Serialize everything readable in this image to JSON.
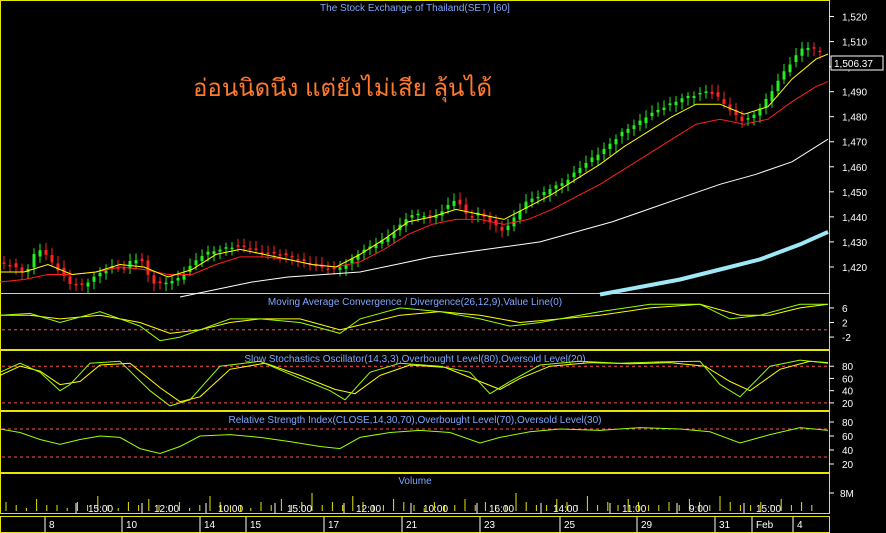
{
  "chart_data": [
    {
      "type": "candlestick",
      "title": "The Stock Exchange of Thailand(SET) [60]",
      "annotation": "อ่อนนิดนึง แต่ยังไม่เสีย ลุ้นได้",
      "last_price_label": "1,506.37",
      "ylim": [
        1410,
        1525
      ],
      "yticks": [
        "1,420",
        "1,430",
        "1,440",
        "1,450",
        "1,460",
        "1,470",
        "1,480",
        "1,490",
        "1,500",
        "1,510",
        "1,520"
      ],
      "ytick_values": [
        1420,
        1430,
        1440,
        1450,
        1460,
        1470,
        1480,
        1490,
        1500,
        1510,
        1520
      ],
      "series_colors": {
        "up": "#22ee22",
        "down": "#ff2222",
        "ma_short": "#ffff00",
        "ma_mid": "#ff2020",
        "ma_long": "#ffffff",
        "ma_longest": "#9fe8f5"
      },
      "close_path": [
        [
          0,
          1422
        ],
        [
          12,
          1421
        ],
        [
          24,
          1417
        ],
        [
          30,
          1420
        ],
        [
          36,
          1427
        ],
        [
          42,
          1427
        ],
        [
          48,
          1424
        ],
        [
          60,
          1418
        ],
        [
          70,
          1413
        ],
        [
          84,
          1413
        ],
        [
          96,
          1417
        ],
        [
          108,
          1419
        ],
        [
          114,
          1420
        ],
        [
          126,
          1419
        ],
        [
          132,
          1424
        ],
        [
          144,
          1422
        ],
        [
          150,
          1414
        ],
        [
          156,
          1413
        ],
        [
          168,
          1414
        ],
        [
          180,
          1416
        ],
        [
          192,
          1421
        ],
        [
          204,
          1425
        ],
        [
          216,
          1427
        ],
        [
          228,
          1428
        ],
        [
          240,
          1428
        ],
        [
          252,
          1427
        ],
        [
          264,
          1426
        ],
        [
          276,
          1425
        ],
        [
          288,
          1424
        ],
        [
          300,
          1423
        ],
        [
          312,
          1421
        ],
        [
          324,
          1419
        ],
        [
          336,
          1419
        ],
        [
          348,
          1422
        ],
        [
          360,
          1426
        ],
        [
          372,
          1428
        ],
        [
          384,
          1431
        ],
        [
          396,
          1435
        ],
        [
          408,
          1440
        ],
        [
          420,
          1441
        ],
        [
          432,
          1440
        ],
        [
          444,
          1443
        ],
        [
          456,
          1447
        ],
        [
          468,
          1440
        ],
        [
          480,
          1442
        ],
        [
          492,
          1437
        ],
        [
          504,
          1434
        ],
        [
          516,
          1441
        ],
        [
          528,
          1447
        ],
        [
          540,
          1448
        ],
        [
          552,
          1452
        ],
        [
          564,
          1454
        ],
        [
          576,
          1458
        ],
        [
          588,
          1462
        ],
        [
          600,
          1466
        ],
        [
          612,
          1470
        ],
        [
          624,
          1474
        ],
        [
          636,
          1477
        ],
        [
          648,
          1481
        ],
        [
          660,
          1483
        ],
        [
          672,
          1485
        ],
        [
          684,
          1488
        ],
        [
          696,
          1489
        ],
        [
          708,
          1490
        ],
        [
          720,
          1487
        ],
        [
          732,
          1482
        ],
        [
          744,
          1478
        ],
        [
          756,
          1481
        ],
        [
          768,
          1488
        ],
        [
          780,
          1496
        ],
        [
          792,
          1502
        ],
        [
          804,
          1508
        ],
        [
          816,
          1507
        ],
        [
          828,
          1506
        ]
      ],
      "ma_short_path": [
        [
          0,
          1418
        ],
        [
          24,
          1418
        ],
        [
          48,
          1421
        ],
        [
          72,
          1417
        ],
        [
          96,
          1418
        ],
        [
          120,
          1421
        ],
        [
          144,
          1420
        ],
        [
          168,
          1416
        ],
        [
          192,
          1419
        ],
        [
          216,
          1425
        ],
        [
          240,
          1427
        ],
        [
          264,
          1425
        ],
        [
          288,
          1423
        ],
        [
          312,
          1421
        ],
        [
          336,
          1420
        ],
        [
          360,
          1425
        ],
        [
          384,
          1431
        ],
        [
          408,
          1438
        ],
        [
          432,
          1440
        ],
        [
          456,
          1443
        ],
        [
          480,
          1441
        ],
        [
          504,
          1439
        ],
        [
          528,
          1444
        ],
        [
          552,
          1449
        ],
        [
          576,
          1455
        ],
        [
          600,
          1461
        ],
        [
          624,
          1468
        ],
        [
          648,
          1474
        ],
        [
          672,
          1480
        ],
        [
          696,
          1485
        ],
        [
          720,
          1485
        ],
        [
          744,
          1481
        ],
        [
          768,
          1484
        ],
        [
          792,
          1495
        ],
        [
          816,
          1503
        ],
        [
          828,
          1505
        ]
      ],
      "ma_mid_path": [
        [
          0,
          1414
        ],
        [
          24,
          1415
        ],
        [
          48,
          1417
        ],
        [
          72,
          1417
        ],
        [
          96,
          1418
        ],
        [
          120,
          1420
        ],
        [
          144,
          1419
        ],
        [
          168,
          1417
        ],
        [
          192,
          1417
        ],
        [
          216,
          1421
        ],
        [
          240,
          1424
        ],
        [
          264,
          1424
        ],
        [
          288,
          1423
        ],
        [
          312,
          1421
        ],
        [
          336,
          1420
        ],
        [
          360,
          1422
        ],
        [
          384,
          1427
        ],
        [
          408,
          1433
        ],
        [
          432,
          1437
        ],
        [
          456,
          1439
        ],
        [
          480,
          1439
        ],
        [
          504,
          1437
        ],
        [
          528,
          1439
        ],
        [
          552,
          1443
        ],
        [
          576,
          1448
        ],
        [
          600,
          1453
        ],
        [
          624,
          1459
        ],
        [
          648,
          1465
        ],
        [
          672,
          1471
        ],
        [
          696,
          1477
        ],
        [
          720,
          1479
        ],
        [
          744,
          1477
        ],
        [
          768,
          1479
        ],
        [
          792,
          1486
        ],
        [
          816,
          1492
        ],
        [
          828,
          1494
        ]
      ],
      "ma_long_path": [
        [
          180,
          1408
        ],
        [
          216,
          1411
        ],
        [
          252,
          1414
        ],
        [
          288,
          1416
        ],
        [
          324,
          1417
        ],
        [
          360,
          1418
        ],
        [
          396,
          1421
        ],
        [
          432,
          1424
        ],
        [
          468,
          1426
        ],
        [
          504,
          1428
        ],
        [
          540,
          1430
        ],
        [
          576,
          1434
        ],
        [
          612,
          1438
        ],
        [
          648,
          1443
        ],
        [
          684,
          1448
        ],
        [
          720,
          1453
        ],
        [
          756,
          1457
        ],
        [
          792,
          1462
        ],
        [
          828,
          1471
        ]
      ],
      "ma_longest_path": [
        [
          600,
          1409
        ],
        [
          640,
          1412
        ],
        [
          680,
          1415
        ],
        [
          720,
          1419
        ],
        [
          760,
          1423
        ],
        [
          800,
          1429
        ],
        [
          828,
          1434
        ]
      ]
    },
    {
      "type": "line",
      "title": "Moving Average Convergence / Divergence(26,12,9),Value Line(0)",
      "ylim": [
        -5,
        9
      ],
      "yticks": [
        "6",
        "2",
        "-2"
      ],
      "ytick_values": [
        6,
        2,
        -2
      ],
      "ref_levels": [
        0
      ],
      "macd": [
        [
          0,
          4
        ],
        [
          30,
          4.5
        ],
        [
          60,
          2
        ],
        [
          100,
          5
        ],
        [
          140,
          1
        ],
        [
          160,
          -3
        ],
        [
          180,
          -2
        ],
        [
          200,
          0
        ],
        [
          230,
          3
        ],
        [
          260,
          3
        ],
        [
          300,
          2
        ],
        [
          340,
          -1
        ],
        [
          360,
          3
        ],
        [
          400,
          6
        ],
        [
          440,
          5
        ],
        [
          480,
          3
        ],
        [
          510,
          1
        ],
        [
          540,
          2
        ],
        [
          600,
          5
        ],
        [
          650,
          7
        ],
        [
          700,
          7
        ],
        [
          730,
          3
        ],
        [
          760,
          4
        ],
        [
          800,
          7
        ],
        [
          828,
          7
        ]
      ],
      "signal": [
        [
          0,
          4
        ],
        [
          30,
          4
        ],
        [
          60,
          3
        ],
        [
          100,
          4
        ],
        [
          140,
          2
        ],
        [
          170,
          -1
        ],
        [
          200,
          0
        ],
        [
          230,
          2
        ],
        [
          260,
          3
        ],
        [
          300,
          3
        ],
        [
          340,
          0
        ],
        [
          370,
          2
        ],
        [
          400,
          4
        ],
        [
          440,
          5
        ],
        [
          480,
          4
        ],
        [
          520,
          2
        ],
        [
          560,
          3
        ],
        [
          600,
          4
        ],
        [
          650,
          6
        ],
        [
          700,
          7
        ],
        [
          740,
          4
        ],
        [
          770,
          4
        ],
        [
          800,
          6
        ],
        [
          828,
          7
        ]
      ]
    },
    {
      "type": "line",
      "title": "Slow Stochastics Oscillator(14,3,3),Overbought Level(80),Oversold Level(20)",
      "ylim": [
        10,
        100
      ],
      "yticks": [
        "80",
        "60",
        "40",
        "20"
      ],
      "ytick_values": [
        80,
        60,
        40,
        20
      ],
      "ref_levels": [
        80,
        20
      ],
      "k": [
        [
          0,
          70
        ],
        [
          20,
          85
        ],
        [
          40,
          70
        ],
        [
          60,
          40
        ],
        [
          70,
          50
        ],
        [
          90,
          85
        ],
        [
          120,
          88
        ],
        [
          150,
          40
        ],
        [
          170,
          15
        ],
        [
          190,
          25
        ],
        [
          220,
          80
        ],
        [
          260,
          88
        ],
        [
          300,
          60
        ],
        [
          330,
          40
        ],
        [
          345,
          25
        ],
        [
          370,
          70
        ],
        [
          400,
          85
        ],
        [
          440,
          80
        ],
        [
          470,
          70
        ],
        [
          490,
          35
        ],
        [
          510,
          55
        ],
        [
          540,
          82
        ],
        [
          580,
          88
        ],
        [
          620,
          85
        ],
        [
          660,
          87
        ],
        [
          700,
          88
        ],
        [
          720,
          50
        ],
        [
          740,
          30
        ],
        [
          770,
          80
        ],
        [
          800,
          90
        ],
        [
          828,
          85
        ]
      ],
      "d": [
        [
          0,
          65
        ],
        [
          20,
          80
        ],
        [
          40,
          72
        ],
        [
          60,
          50
        ],
        [
          80,
          55
        ],
        [
          100,
          82
        ],
        [
          130,
          85
        ],
        [
          160,
          45
        ],
        [
          180,
          22
        ],
        [
          200,
          30
        ],
        [
          230,
          75
        ],
        [
          265,
          85
        ],
        [
          300,
          65
        ],
        [
          335,
          42
        ],
        [
          355,
          35
        ],
        [
          380,
          65
        ],
        [
          410,
          82
        ],
        [
          445,
          78
        ],
        [
          480,
          55
        ],
        [
          500,
          42
        ],
        [
          520,
          60
        ],
        [
          550,
          80
        ],
        [
          590,
          86
        ],
        [
          630,
          84
        ],
        [
          670,
          86
        ],
        [
          705,
          80
        ],
        [
          730,
          55
        ],
        [
          750,
          40
        ],
        [
          780,
          75
        ],
        [
          810,
          88
        ],
        [
          828,
          86
        ]
      ]
    },
    {
      "type": "line",
      "title": "Relative Strength Index(CLOSE,14,30,70),Overbought Level(70),Oversold Level(30)",
      "ylim": [
        10,
        90
      ],
      "yticks": [
        "80",
        "60",
        "40",
        "20"
      ],
      "ytick_values": [
        80,
        60,
        40,
        20
      ],
      "ref_levels": [
        70,
        30
      ],
      "rsi": [
        [
          0,
          70
        ],
        [
          20,
          65
        ],
        [
          40,
          55
        ],
        [
          60,
          48
        ],
        [
          80,
          55
        ],
        [
          100,
          60
        ],
        [
          120,
          58
        ],
        [
          140,
          42
        ],
        [
          160,
          35
        ],
        [
          180,
          45
        ],
        [
          200,
          60
        ],
        [
          230,
          62
        ],
        [
          260,
          58
        ],
        [
          290,
          52
        ],
        [
          320,
          45
        ],
        [
          340,
          42
        ],
        [
          360,
          58
        ],
        [
          390,
          65
        ],
        [
          420,
          68
        ],
        [
          450,
          65
        ],
        [
          480,
          50
        ],
        [
          500,
          58
        ],
        [
          530,
          66
        ],
        [
          560,
          70
        ],
        [
          600,
          68
        ],
        [
          640,
          72
        ],
        [
          680,
          70
        ],
        [
          710,
          66
        ],
        [
          740,
          50
        ],
        [
          770,
          62
        ],
        [
          800,
          72
        ],
        [
          828,
          68
        ]
      ]
    },
    {
      "type": "bar",
      "title": "Volume",
      "yticks": [
        "8M"
      ],
      "ytick_values": [
        8
      ],
      "bar_values_m": [
        3,
        2,
        1,
        4,
        2,
        2,
        1,
        3,
        2,
        5,
        2,
        1,
        3,
        2,
        4,
        2,
        2,
        3,
        1,
        2,
        5,
        3,
        2,
        2,
        1,
        3,
        2,
        4,
        2,
        3,
        6,
        2,
        3,
        2,
        5,
        3,
        2,
        2,
        4,
        3,
        2,
        1,
        3,
        2,
        2,
        4,
        2,
        3,
        2,
        2,
        6,
        3,
        2,
        2,
        4,
        3,
        2,
        5,
        2,
        3,
        2,
        4,
        3,
        2,
        2,
        3,
        2,
        4,
        3,
        2,
        5,
        3,
        2,
        2,
        3,
        2,
        4,
        2,
        3,
        2
      ]
    }
  ],
  "time_axis": {
    "time_labels": [
      "15:00",
      "12:00",
      "10:00",
      "15:00",
      "12:00",
      "10:00",
      "16:00",
      "14:00",
      "11:00",
      "9:00",
      "15:00"
    ],
    "day_labels": [
      "8",
      "10",
      "14",
      "15",
      "17",
      "21",
      "23",
      "25",
      "29",
      "31",
      "Feb",
      "4"
    ]
  }
}
